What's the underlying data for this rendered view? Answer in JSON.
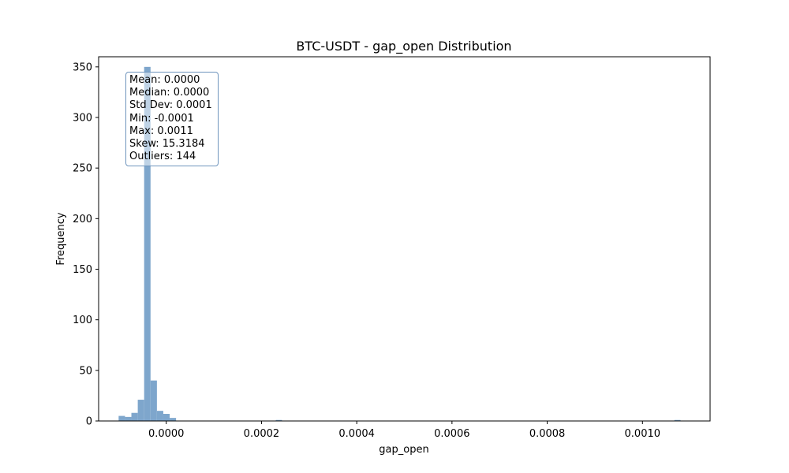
{
  "chart_data": {
    "type": "bar",
    "title": "BTC-USDT - gap_open Distribution",
    "xlabel": "gap_open",
    "ylabel": "Frequency",
    "xlim": [
      -0.000142,
      0.001142
    ],
    "ylim": [
      0,
      360
    ],
    "xticks": [
      0.0,
      0.0002,
      0.0004,
      0.0006,
      0.0008,
      0.001
    ],
    "xtick_labels": [
      "0.0000",
      "0.0002",
      "0.0004",
      "0.0006",
      "0.0008",
      "0.0010"
    ],
    "yticks": [
      0,
      50,
      100,
      150,
      200,
      250,
      300,
      350
    ],
    "ytick_labels": [
      "0",
      "50",
      "100",
      "150",
      "200",
      "250",
      "300",
      "350"
    ],
    "bar_color": "#7ea6cc",
    "grid": false,
    "bins": [
      {
        "x0": -0.0001,
        "x1": -8.66e-05,
        "count": 5
      },
      {
        "x0": -8.66e-05,
        "x1": -7.32e-05,
        "count": 4
      },
      {
        "x0": -7.32e-05,
        "x1": -5.98e-05,
        "count": 8
      },
      {
        "x0": -5.98e-05,
        "x1": -4.64e-05,
        "count": 21
      },
      {
        "x0": -4.64e-05,
        "x1": -3.3e-05,
        "count": 350
      },
      {
        "x0": -3.3e-05,
        "x1": -1.96e-05,
        "count": 40
      },
      {
        "x0": -1.96e-05,
        "x1": -6.2e-06,
        "count": 10
      },
      {
        "x0": -6.2e-06,
        "x1": 7.2e-06,
        "count": 7
      },
      {
        "x0": 7.2e-06,
        "x1": 2.06e-05,
        "count": 3
      },
      {
        "x0": 0.00023,
        "x1": 0.000243,
        "count": 1
      },
      {
        "x0": 0.001067,
        "x1": 0.00108,
        "count": 1
      }
    ],
    "stats": [
      "Mean: 0.0000",
      "Median: 0.0000",
      "Std Dev: 0.0001",
      "Min: -0.0001",
      "Max: 0.0011",
      "Skew: 15.3184",
      "Outliers: 144"
    ]
  }
}
